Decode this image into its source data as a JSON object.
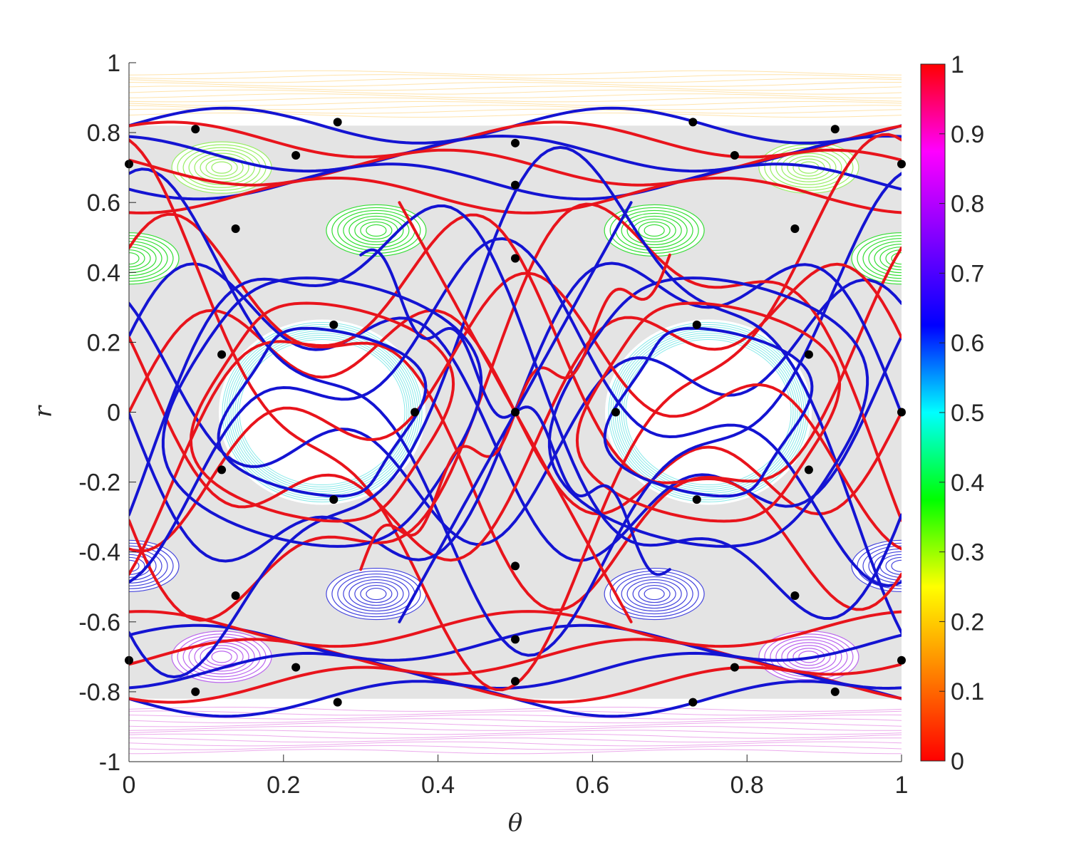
{
  "chart_data": {
    "type": "scatter",
    "title": "",
    "xlabel": "θ",
    "ylabel": "r",
    "xlim": [
      0,
      1
    ],
    "ylim": [
      -1,
      1
    ],
    "x_ticks": [
      0,
      0.2,
      0.4,
      0.6,
      0.8,
      1
    ],
    "y_ticks": [
      -1,
      -0.8,
      -0.6,
      -0.4,
      -0.2,
      0,
      0.2,
      0.4,
      0.6,
      0.8,
      1
    ],
    "x_tick_labels": [
      "0",
      "0.2",
      "0.4",
      "0.6",
      "0.8",
      "1"
    ],
    "y_tick_labels": [
      "-1",
      "-0.8",
      "-0.6",
      "-0.4",
      "-0.2",
      "0",
      "0.2",
      "0.4",
      "0.6",
      "0.8",
      "1"
    ],
    "grid": false,
    "colorbar": {
      "range": [
        0,
        1
      ],
      "ticks": [
        0,
        0.1,
        0.2,
        0.3,
        0.4,
        0.5,
        0.6,
        0.7,
        0.8,
        0.9,
        1
      ],
      "tick_labels": [
        "0",
        "0.1",
        "0.2",
        "0.3",
        "0.4",
        "0.5",
        "0.6",
        "0.7",
        "0.8",
        "0.9",
        "1"
      ],
      "colormap": [
        "#ff0000",
        "#ff8000",
        "#ffff00",
        "#00ff00",
        "#00ffff",
        "#0000ff",
        "#8000ff",
        "#ff00ff",
        "#ff0000"
      ]
    },
    "background": {
      "chaotic_sea_color": "#e4e4e4",
      "island_colors": {
        "upper": "#33dd33",
        "center": "#55e0e0",
        "lower": "#4444dd",
        "band_upper": "#ffcc66",
        "band_lower": "#dd66dd"
      },
      "islands": [
        {
          "theta": 0.32,
          "r": 0.52,
          "color": "#33dd33"
        },
        {
          "theta": 0.68,
          "r": 0.52,
          "color": "#33dd33"
        },
        {
          "theta": 0.0,
          "r": 0.44,
          "color": "#33dd33"
        },
        {
          "theta": 1.0,
          "r": 0.44,
          "color": "#33dd33"
        },
        {
          "theta": 0.32,
          "r": -0.52,
          "color": "#4444dd"
        },
        {
          "theta": 0.68,
          "r": -0.52,
          "color": "#4444dd"
        },
        {
          "theta": 0.0,
          "r": -0.44,
          "color": "#4444dd"
        },
        {
          "theta": 1.0,
          "r": -0.44,
          "color": "#4444dd"
        },
        {
          "theta": 0.12,
          "r": 0.7,
          "color": "#99ee66"
        },
        {
          "theta": 0.88,
          "r": 0.7,
          "color": "#99ee66"
        },
        {
          "theta": 0.12,
          "r": -0.7,
          "color": "#bb66ee"
        },
        {
          "theta": 0.88,
          "r": -0.7,
          "color": "#bb66ee"
        }
      ],
      "central_islands": [
        {
          "theta": 0.25,
          "r": 0.0,
          "color": "#55e0e0"
        },
        {
          "theta": 0.75,
          "r": 0.0,
          "color": "#55e0e0"
        }
      ]
    },
    "series": [
      {
        "color": "#e8141c"
      },
      {
        "color": "#1414d2"
      }
    ],
    "fixed_points": [
      [
        0,
        0.71
      ],
      [
        1,
        0.71
      ],
      [
        0,
        -0.71
      ],
      [
        1,
        -0.71
      ],
      [
        1,
        0
      ],
      [
        0.086,
        0.81
      ],
      [
        0.914,
        0.81
      ],
      [
        0.086,
        -0.8
      ],
      [
        0.914,
        -0.8
      ],
      [
        0.27,
        0.83
      ],
      [
        0.73,
        0.83
      ],
      [
        0.27,
        -0.83
      ],
      [
        0.73,
        -0.83
      ],
      [
        0.5,
        0.77
      ],
      [
        0.5,
        -0.77
      ],
      [
        0.5,
        0.65
      ],
      [
        0.5,
        -0.65
      ],
      [
        0.5,
        0.44
      ],
      [
        0.5,
        -0.44
      ],
      [
        0.5,
        0
      ],
      [
        0.216,
        0.735
      ],
      [
        0.784,
        0.735
      ],
      [
        0.216,
        -0.73
      ],
      [
        0.784,
        -0.73
      ],
      [
        0.138,
        0.525
      ],
      [
        0.862,
        0.525
      ],
      [
        0.138,
        -0.525
      ],
      [
        0.862,
        -0.525
      ],
      [
        0.265,
        0.25
      ],
      [
        0.735,
        0.25
      ],
      [
        0.265,
        -0.25
      ],
      [
        0.735,
        -0.25
      ],
      [
        0.12,
        0.165
      ],
      [
        0.88,
        0.165
      ],
      [
        0.12,
        -0.165
      ],
      [
        0.88,
        -0.165
      ],
      [
        0.37,
        0
      ],
      [
        0.63,
        0
      ]
    ]
  }
}
